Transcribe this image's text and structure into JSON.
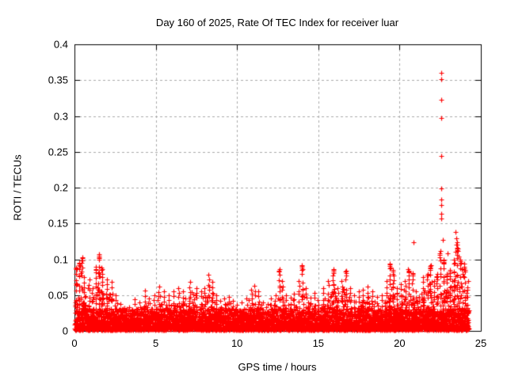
{
  "chart_data": {
    "type": "scatter",
    "title": "Day 160 of 2025, Rate Of TEC Index for receiver luar",
    "xlabel": "GPS time / hours",
    "ylabel": "ROTI / TECUs",
    "xlim": [
      0,
      25
    ],
    "ylim": [
      0,
      0.4
    ],
    "xticks": [
      0,
      5,
      10,
      15,
      20,
      25
    ],
    "xtick_labels": [
      "0",
      "5",
      "10",
      "15",
      "20",
      "25"
    ],
    "yticks": [
      0,
      0.05,
      0.1,
      0.15,
      0.2,
      0.25,
      0.3,
      0.35,
      0.4
    ],
    "ytick_labels": [
      "0",
      "0.05",
      "0.1",
      "0.15",
      "0.2",
      "0.25",
      "0.3",
      "0.35",
      "0.4"
    ],
    "grid": "dashed",
    "legend": "none",
    "marker": "plus",
    "marker_color": "#ff0000",
    "grid_color": "#aaaaaa",
    "axis_color": "#000000",
    "background_color": "#ffffff",
    "data_x_range": [
      0.02,
      24.25
    ],
    "envelope_max": [
      [
        0.1,
        0.088
      ],
      [
        0.3,
        0.095
      ],
      [
        0.45,
        0.103
      ],
      [
        0.6,
        0.075
      ],
      [
        0.9,
        0.072
      ],
      [
        1.1,
        0.06
      ],
      [
        1.3,
        0.09
      ],
      [
        1.5,
        0.107
      ],
      [
        1.7,
        0.088
      ],
      [
        2.0,
        0.072
      ],
      [
        2.3,
        0.069
      ],
      [
        2.5,
        0.05
      ],
      [
        2.8,
        0.038
      ],
      [
        3.1,
        0.032
      ],
      [
        3.4,
        0.033
      ],
      [
        3.7,
        0.044
      ],
      [
        4.0,
        0.04
      ],
      [
        4.3,
        0.056
      ],
      [
        4.6,
        0.045
      ],
      [
        4.9,
        0.05
      ],
      [
        5.2,
        0.062
      ],
      [
        5.5,
        0.055
      ],
      [
        5.8,
        0.05
      ],
      [
        6.1,
        0.055
      ],
      [
        6.4,
        0.06
      ],
      [
        6.7,
        0.055
      ],
      [
        7.1,
        0.068
      ],
      [
        7.5,
        0.06
      ],
      [
        7.8,
        0.055
      ],
      [
        8.0,
        0.06
      ],
      [
        8.25,
        0.079
      ],
      [
        8.5,
        0.068
      ],
      [
        8.75,
        0.05
      ],
      [
        9.0,
        0.042
      ],
      [
        9.25,
        0.045
      ],
      [
        9.5,
        0.048
      ],
      [
        9.75,
        0.042
      ],
      [
        10.0,
        0.036
      ],
      [
        10.3,
        0.04
      ],
      [
        10.6,
        0.045
      ],
      [
        10.9,
        0.058
      ],
      [
        11.1,
        0.063
      ],
      [
        11.3,
        0.055
      ],
      [
        11.6,
        0.04
      ],
      [
        11.9,
        0.038
      ],
      [
        12.1,
        0.045
      ],
      [
        12.35,
        0.05
      ],
      [
        12.6,
        0.086
      ],
      [
        12.8,
        0.07
      ],
      [
        13.0,
        0.05
      ],
      [
        13.3,
        0.046
      ],
      [
        13.5,
        0.052
      ],
      [
        13.8,
        0.07
      ],
      [
        14.0,
        0.092
      ],
      [
        14.25,
        0.06
      ],
      [
        14.5,
        0.046
      ],
      [
        14.75,
        0.053
      ],
      [
        15.0,
        0.043
      ],
      [
        15.3,
        0.06
      ],
      [
        15.6,
        0.07
      ],
      [
        15.9,
        0.086
      ],
      [
        16.2,
        0.06
      ],
      [
        16.45,
        0.07
      ],
      [
        16.7,
        0.084
      ],
      [
        16.95,
        0.06
      ],
      [
        17.2,
        0.05
      ],
      [
        17.5,
        0.055
      ],
      [
        17.75,
        0.058
      ],
      [
        18.0,
        0.062
      ],
      [
        18.3,
        0.055
      ],
      [
        18.6,
        0.048
      ],
      [
        18.9,
        0.05
      ],
      [
        19.2,
        0.07
      ],
      [
        19.4,
        0.094
      ],
      [
        19.6,
        0.085
      ],
      [
        19.85,
        0.06
      ],
      [
        20.1,
        0.065
      ],
      [
        20.35,
        0.07
      ],
      [
        20.55,
        0.086
      ],
      [
        20.8,
        0.08
      ],
      [
        21.0,
        0.055
      ],
      [
        21.2,
        0.048
      ],
      [
        21.45,
        0.075
      ],
      [
        21.7,
        0.08
      ],
      [
        21.9,
        0.092
      ],
      [
        22.1,
        0.07
      ],
      [
        22.3,
        0.08
      ],
      [
        22.5,
        0.112
      ],
      [
        22.7,
        0.1
      ],
      [
        22.9,
        0.08
      ],
      [
        23.1,
        0.085
      ],
      [
        23.35,
        0.1
      ],
      [
        23.55,
        0.12
      ],
      [
        23.75,
        0.1
      ],
      [
        24.0,
        0.09
      ],
      [
        24.2,
        0.07
      ]
    ],
    "outliers": [
      [
        22.56,
        0.36
      ],
      [
        22.56,
        0.351
      ],
      [
        22.56,
        0.323
      ],
      [
        22.56,
        0.297
      ],
      [
        22.56,
        0.244
      ],
      [
        22.56,
        0.199
      ],
      [
        22.58,
        0.183
      ],
      [
        22.58,
        0.176
      ],
      [
        22.56,
        0.163
      ],
      [
        22.56,
        0.157
      ],
      [
        22.66,
        0.127
      ],
      [
        20.86,
        0.124
      ],
      [
        22.95,
        0.108
      ],
      [
        23.45,
        0.138
      ],
      [
        23.5,
        0.129
      ],
      [
        23.55,
        0.124
      ],
      [
        23.5,
        0.12
      ],
      [
        23.55,
        0.116
      ],
      [
        23.6,
        0.112
      ],
      [
        23.45,
        0.11
      ],
      [
        23.65,
        0.104
      ],
      [
        24.0,
        0.094
      ],
      [
        23.85,
        0.086
      ],
      [
        23.9,
        0.08
      ],
      [
        23.95,
        0.076
      ],
      [
        23.7,
        0.061
      ]
    ]
  }
}
